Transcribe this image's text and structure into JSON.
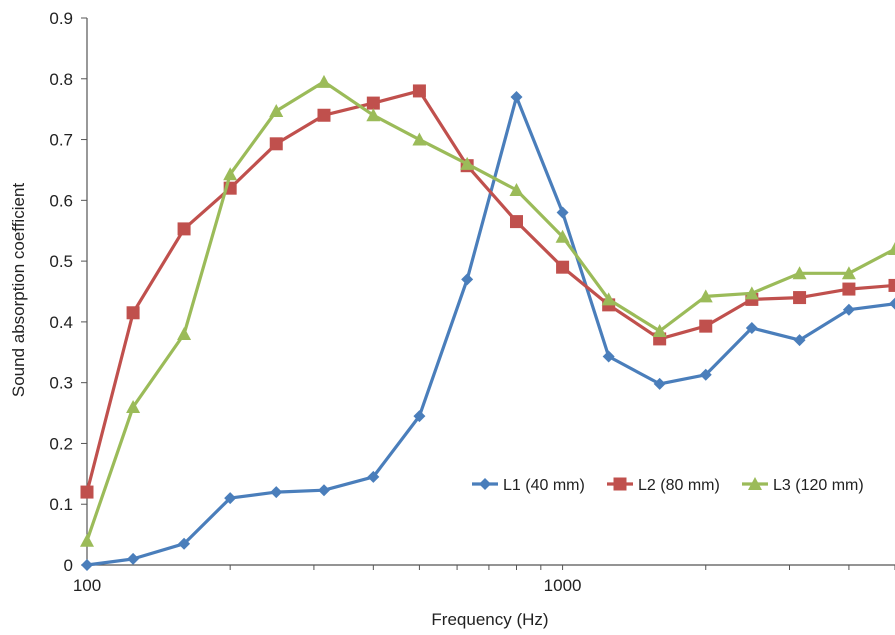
{
  "chart_data": {
    "type": "line",
    "xlabel": "Frequency (Hz)",
    "ylabel": "Sound absorption coefficient",
    "x_scale": "log",
    "xlim": [
      100,
      5000
    ],
    "ylim": [
      0,
      0.9
    ],
    "x_tick_labels": [
      "100",
      "1000"
    ],
    "y_tick_labels": [
      "0",
      "0.1",
      "0.2",
      "0.3",
      "0.4",
      "0.5",
      "0.6",
      "0.7",
      "0.8",
      "0.9"
    ],
    "grid": false,
    "legend_position": "lower-right",
    "x": [
      100,
      125,
      160,
      200,
      250,
      315,
      400,
      500,
      630,
      800,
      1000,
      1250,
      1600,
      2000,
      2500,
      3150,
      4000,
      5000
    ],
    "series": [
      {
        "name": "L1 (40 mm)",
        "color": "#4a7ebb",
        "marker": "diamond",
        "values": [
          0.0,
          0.01,
          0.035,
          0.11,
          0.12,
          0.123,
          0.145,
          0.245,
          0.47,
          0.77,
          0.58,
          0.343,
          0.298,
          0.313,
          0.39,
          0.37,
          0.42,
          0.43
        ]
      },
      {
        "name": "L2 (80 mm)",
        "color": "#c0504d",
        "marker": "square",
        "values": [
          0.12,
          0.415,
          0.553,
          0.62,
          0.693,
          0.74,
          0.76,
          0.78,
          0.657,
          0.565,
          0.49,
          0.428,
          0.372,
          0.393,
          0.437,
          0.44,
          0.454,
          0.46
        ]
      },
      {
        "name": "L3 (120 mm)",
        "color": "#9bbb59",
        "marker": "triangle",
        "values": [
          0.04,
          0.26,
          0.38,
          0.643,
          0.747,
          0.795,
          0.74,
          0.7,
          0.66,
          0.617,
          0.54,
          0.437,
          0.385,
          0.442,
          0.447,
          0.48,
          0.48,
          0.52
        ]
      }
    ]
  }
}
